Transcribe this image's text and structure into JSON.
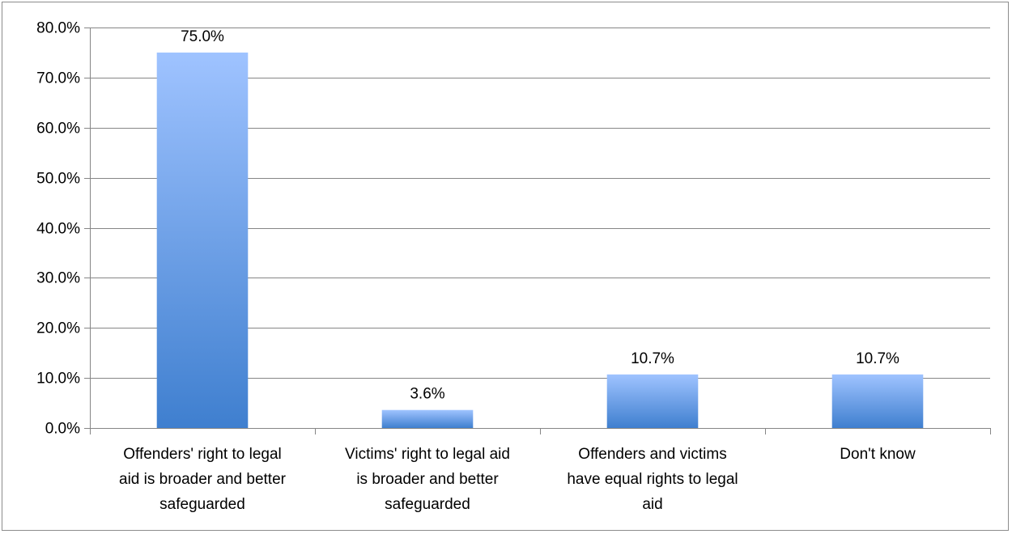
{
  "chart_data": {
    "type": "bar",
    "categories": [
      "Offenders' right to legal aid is broader and better safeguarded",
      "Victims' right to legal aid is broader and better safeguarded",
      "Offenders and victims have equal rights to legal aid",
      "Don't know"
    ],
    "category_lines": [
      [
        "Offenders' right to legal",
        "aid is broader and better",
        "safeguarded"
      ],
      [
        "Victims' right to legal aid",
        "is broader and better",
        "safeguarded"
      ],
      [
        "Offenders and victims",
        "have equal rights to legal",
        "aid"
      ],
      [
        "Don't know"
      ]
    ],
    "values": [
      75.0,
      3.6,
      10.7,
      10.7
    ],
    "data_labels": [
      "75.0%",
      "3.6%",
      "10.7%",
      "10.7%"
    ],
    "title": "",
    "xlabel": "",
    "ylabel": "",
    "ylim": [
      0,
      80
    ],
    "yticks": [
      0,
      10,
      20,
      30,
      40,
      50,
      60,
      70,
      80
    ],
    "ytick_labels": [
      "0.0%",
      "10.0%",
      "20.0%",
      "30.0%",
      "40.0%",
      "50.0%",
      "60.0%",
      "70.0%",
      "80.0%"
    ],
    "grid": true,
    "legend": "none",
    "colors": {
      "bar_top": "#9fc3ff",
      "bar_bottom": "#3f7fcf",
      "grid": "#868686"
    }
  }
}
